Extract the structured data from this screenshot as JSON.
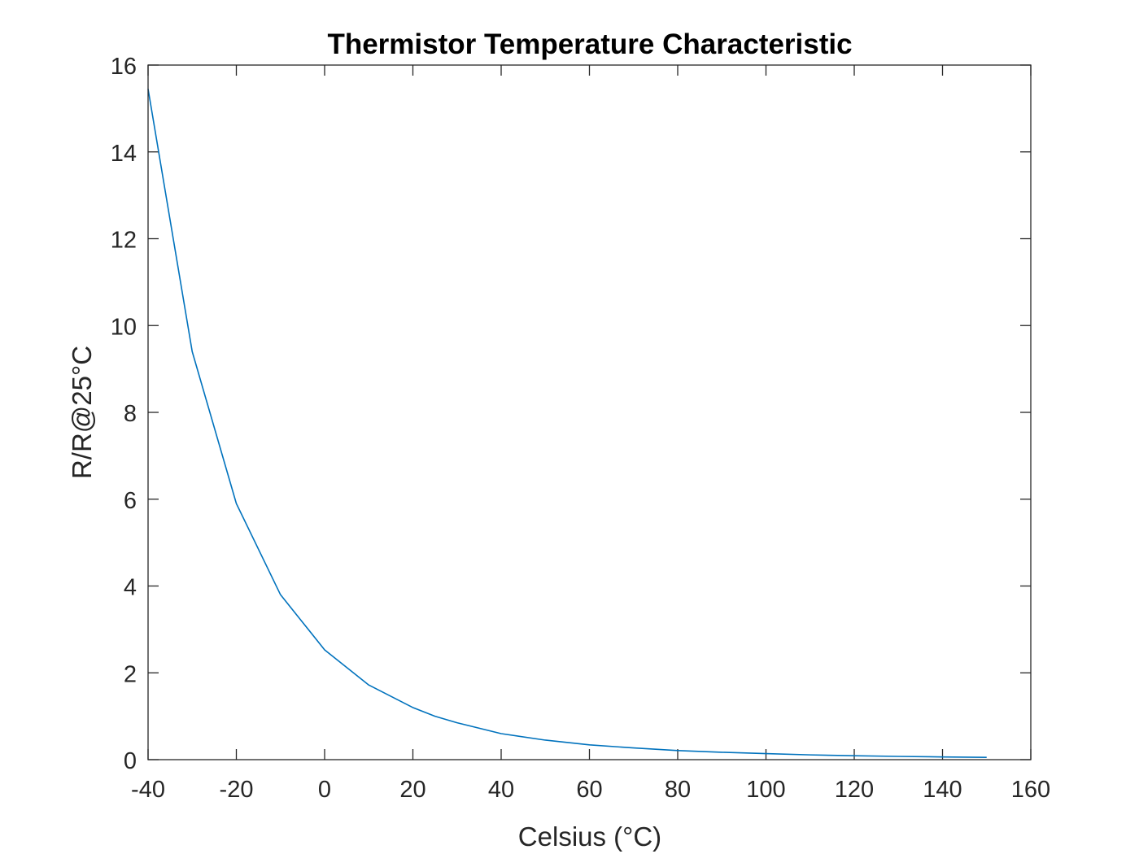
{
  "chart_data": {
    "type": "line",
    "title": "Thermistor Temperature Characteristic",
    "xlabel": "Celsius (°C)",
    "ylabel": "R/R@25°C",
    "xlim": [
      -40,
      160
    ],
    "ylim": [
      0,
      16
    ],
    "xticks": [
      -40,
      -20,
      0,
      20,
      40,
      60,
      80,
      100,
      120,
      140,
      160
    ],
    "yticks": [
      0,
      2,
      4,
      6,
      8,
      10,
      12,
      14,
      16
    ],
    "grid": false,
    "box": true,
    "series": [
      {
        "color": "#0072BD",
        "x": [
          -40,
          -30,
          -20,
          -10,
          0,
          10,
          20,
          25,
          30,
          40,
          50,
          60,
          70,
          80,
          90,
          100,
          110,
          120,
          130,
          140,
          150
        ],
        "y": [
          15.45,
          9.4,
          5.9,
          3.8,
          2.53,
          1.72,
          1.2,
          1.0,
          0.85,
          0.6,
          0.45,
          0.34,
          0.27,
          0.21,
          0.17,
          0.14,
          0.11,
          0.09,
          0.075,
          0.063,
          0.053
        ]
      }
    ]
  }
}
